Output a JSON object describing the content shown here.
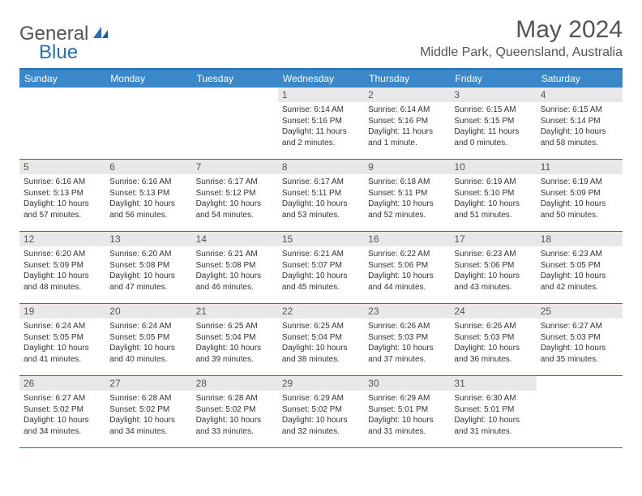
{
  "logo": {
    "text1": "General",
    "text2": "Blue"
  },
  "title": "May 2024",
  "location": "Middle Park, Queensland, Australia",
  "weekdays": [
    "Sunday",
    "Monday",
    "Tuesday",
    "Wednesday",
    "Thursday",
    "Friday",
    "Saturday"
  ],
  "colors": {
    "header_bar": "#3a87c9",
    "border": "#2a6fb5",
    "daynum_bg": "#e8e8e8",
    "text": "#333333",
    "title_text": "#555555"
  },
  "weeks": [
    [
      null,
      null,
      null,
      {
        "n": "1",
        "sunrise": "6:14 AM",
        "sunset": "5:16 PM",
        "daylight": "11 hours and 2 minutes."
      },
      {
        "n": "2",
        "sunrise": "6:14 AM",
        "sunset": "5:16 PM",
        "daylight": "11 hours and 1 minute."
      },
      {
        "n": "3",
        "sunrise": "6:15 AM",
        "sunset": "5:15 PM",
        "daylight": "11 hours and 0 minutes."
      },
      {
        "n": "4",
        "sunrise": "6:15 AM",
        "sunset": "5:14 PM",
        "daylight": "10 hours and 58 minutes."
      }
    ],
    [
      {
        "n": "5",
        "sunrise": "6:16 AM",
        "sunset": "5:13 PM",
        "daylight": "10 hours and 57 minutes."
      },
      {
        "n": "6",
        "sunrise": "6:16 AM",
        "sunset": "5:13 PM",
        "daylight": "10 hours and 56 minutes."
      },
      {
        "n": "7",
        "sunrise": "6:17 AM",
        "sunset": "5:12 PM",
        "daylight": "10 hours and 54 minutes."
      },
      {
        "n": "8",
        "sunrise": "6:17 AM",
        "sunset": "5:11 PM",
        "daylight": "10 hours and 53 minutes."
      },
      {
        "n": "9",
        "sunrise": "6:18 AM",
        "sunset": "5:11 PM",
        "daylight": "10 hours and 52 minutes."
      },
      {
        "n": "10",
        "sunrise": "6:19 AM",
        "sunset": "5:10 PM",
        "daylight": "10 hours and 51 minutes."
      },
      {
        "n": "11",
        "sunrise": "6:19 AM",
        "sunset": "5:09 PM",
        "daylight": "10 hours and 50 minutes."
      }
    ],
    [
      {
        "n": "12",
        "sunrise": "6:20 AM",
        "sunset": "5:09 PM",
        "daylight": "10 hours and 48 minutes."
      },
      {
        "n": "13",
        "sunrise": "6:20 AM",
        "sunset": "5:08 PM",
        "daylight": "10 hours and 47 minutes."
      },
      {
        "n": "14",
        "sunrise": "6:21 AM",
        "sunset": "5:08 PM",
        "daylight": "10 hours and 46 minutes."
      },
      {
        "n": "15",
        "sunrise": "6:21 AM",
        "sunset": "5:07 PM",
        "daylight": "10 hours and 45 minutes."
      },
      {
        "n": "16",
        "sunrise": "6:22 AM",
        "sunset": "5:06 PM",
        "daylight": "10 hours and 44 minutes."
      },
      {
        "n": "17",
        "sunrise": "6:23 AM",
        "sunset": "5:06 PM",
        "daylight": "10 hours and 43 minutes."
      },
      {
        "n": "18",
        "sunrise": "6:23 AM",
        "sunset": "5:05 PM",
        "daylight": "10 hours and 42 minutes."
      }
    ],
    [
      {
        "n": "19",
        "sunrise": "6:24 AM",
        "sunset": "5:05 PM",
        "daylight": "10 hours and 41 minutes."
      },
      {
        "n": "20",
        "sunrise": "6:24 AM",
        "sunset": "5:05 PM",
        "daylight": "10 hours and 40 minutes."
      },
      {
        "n": "21",
        "sunrise": "6:25 AM",
        "sunset": "5:04 PM",
        "daylight": "10 hours and 39 minutes."
      },
      {
        "n": "22",
        "sunrise": "6:25 AM",
        "sunset": "5:04 PM",
        "daylight": "10 hours and 38 minutes."
      },
      {
        "n": "23",
        "sunrise": "6:26 AM",
        "sunset": "5:03 PM",
        "daylight": "10 hours and 37 minutes."
      },
      {
        "n": "24",
        "sunrise": "6:26 AM",
        "sunset": "5:03 PM",
        "daylight": "10 hours and 36 minutes."
      },
      {
        "n": "25",
        "sunrise": "6:27 AM",
        "sunset": "5:03 PM",
        "daylight": "10 hours and 35 minutes."
      }
    ],
    [
      {
        "n": "26",
        "sunrise": "6:27 AM",
        "sunset": "5:02 PM",
        "daylight": "10 hours and 34 minutes."
      },
      {
        "n": "27",
        "sunrise": "6:28 AM",
        "sunset": "5:02 PM",
        "daylight": "10 hours and 34 minutes."
      },
      {
        "n": "28",
        "sunrise": "6:28 AM",
        "sunset": "5:02 PM",
        "daylight": "10 hours and 33 minutes."
      },
      {
        "n": "29",
        "sunrise": "6:29 AM",
        "sunset": "5:02 PM",
        "daylight": "10 hours and 32 minutes."
      },
      {
        "n": "30",
        "sunrise": "6:29 AM",
        "sunset": "5:01 PM",
        "daylight": "10 hours and 31 minutes."
      },
      {
        "n": "31",
        "sunrise": "6:30 AM",
        "sunset": "5:01 PM",
        "daylight": "10 hours and 31 minutes."
      },
      null
    ]
  ]
}
